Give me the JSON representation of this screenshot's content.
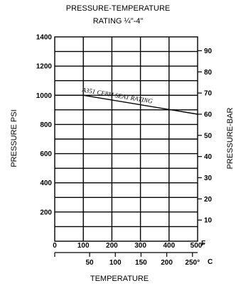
{
  "chart_data": {
    "type": "line",
    "title_line1": "PRESSURE-TEMPERATURE",
    "title_line2": "RATING ¼\"-4\"",
    "xlabel": "TEMPERATURE",
    "ylabel_left": "PRESSURE PSI",
    "ylabel_right": "PRESSURE-BAR",
    "x_unit_primary": "F",
    "x_unit_secondary": "C",
    "xlim_f": [
      0,
      500
    ],
    "ylim_psi": [
      0,
      1400
    ],
    "grid": true,
    "left_ticks": [
      {
        "value": 200,
        "label": "200"
      },
      {
        "value": 400,
        "label": "400"
      },
      {
        "value": 600,
        "label": "600"
      },
      {
        "value": 800,
        "label": "800"
      },
      {
        "value": 1000,
        "label": "1000"
      },
      {
        "value": 1200,
        "label": "1200"
      },
      {
        "value": 1400,
        "label": "1400"
      }
    ],
    "right_ticks": [
      {
        "value": 10,
        "label": "10"
      },
      {
        "value": 20,
        "label": "20"
      },
      {
        "value": 30,
        "label": "30"
      },
      {
        "value": 40,
        "label": "40"
      },
      {
        "value": 50,
        "label": "50"
      },
      {
        "value": 60,
        "label": "60"
      },
      {
        "value": 70,
        "label": "70"
      },
      {
        "value": 80,
        "label": "80"
      },
      {
        "value": 90,
        "label": "90"
      }
    ],
    "bottom_ticks_f": [
      {
        "value": 0,
        "label": "0"
      },
      {
        "value": 100,
        "label": "100"
      },
      {
        "value": 200,
        "label": "200"
      },
      {
        "value": 300,
        "label": "300"
      },
      {
        "value": 400,
        "label": "400"
      },
      {
        "value": 500,
        "label": "500°"
      }
    ],
    "bottom_ticks_c": [
      {
        "value": 50,
        "label": "50"
      },
      {
        "value": 100,
        "label": "100"
      },
      {
        "value": 150,
        "label": "150"
      },
      {
        "value": 200,
        "label": "200"
      },
      {
        "value": 250,
        "label": "250°"
      }
    ],
    "series": [
      {
        "name": "A351 CF8M SEAT RATING",
        "x": [
          0,
          100,
          500
        ],
        "y": [
          1000,
          1000,
          870
        ]
      }
    ]
  }
}
